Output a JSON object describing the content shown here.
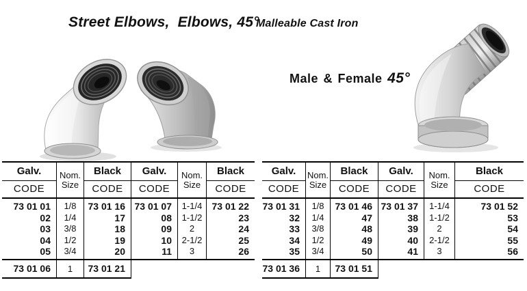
{
  "header": {
    "title": "Street Elbows,  Elbows, 45°",
    "subtitle": "Malleable Cast Iron",
    "caption_text": "Male & Female",
    "caption_angle": "45°"
  },
  "images": {
    "left": "galvanized-45-elbow-photo",
    "middle": "stainless-45-elbow-photo",
    "right": "male-female-45-street-elbow-photo"
  },
  "table_labels": {
    "galv": "Galv.",
    "black": "Black",
    "code": "CODE",
    "nom": "Nom.",
    "size": "Size"
  },
  "tables": [
    {
      "rows": [
        [
          "73 01 01",
          "1/8",
          "73 01 16",
          "73 01 07",
          "1-1/4",
          "73 01 22"
        ],
        [
          "02",
          "1/4",
          "17",
          "08",
          "1-1/2",
          "23"
        ],
        [
          "03",
          "3/8",
          "18",
          "09",
          "2",
          "24"
        ],
        [
          "04",
          "1/2",
          "19",
          "10",
          "2-1/2",
          "25"
        ],
        [
          "05",
          "3/4",
          "20",
          "11",
          "3",
          "26"
        ]
      ],
      "footer": [
        "73 01 06",
        "1",
        "73 01 21"
      ]
    },
    {
      "rows": [
        [
          "73 01 31",
          "1/8",
          "73 01 46",
          "73 01 37",
          "1-1/4",
          "73 01 52"
        ],
        [
          "32",
          "1/4",
          "47",
          "38",
          "1-1/2",
          "53"
        ],
        [
          "33",
          "3/8",
          "48",
          "39",
          "2",
          "54"
        ],
        [
          "34",
          "1/2",
          "49",
          "40",
          "2-1/2",
          "55"
        ],
        [
          "35",
          "3/4",
          "50",
          "41",
          "3",
          "56"
        ]
      ],
      "footer": [
        "73 01 36",
        "1",
        "73 01 51"
      ]
    }
  ]
}
